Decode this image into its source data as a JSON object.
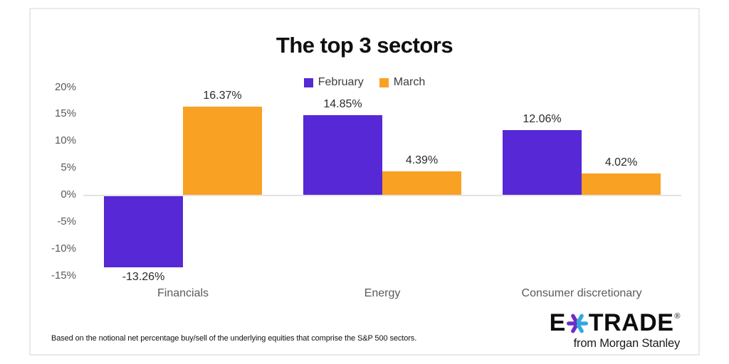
{
  "card": {
    "background": "#ffffff",
    "border_color": "#e9e9e9"
  },
  "header": {
    "title": "The top 3 sectors"
  },
  "chart_data": {
    "type": "bar",
    "title": "The top 3 sectors",
    "categories": [
      "Financials",
      "Energy",
      "Consumer discretionary"
    ],
    "series": [
      {
        "name": "February",
        "color": "#5628d6",
        "values": [
          -13.26,
          14.85,
          12.06
        ],
        "labels": [
          "-13.26%",
          "14.85%",
          "12.06%"
        ]
      },
      {
        "name": "March",
        "color": "#f9a123",
        "values": [
          16.37,
          4.39,
          4.02
        ],
        "labels": [
          "16.37%",
          "4.39%",
          "4.02%"
        ]
      }
    ],
    "yticks": [
      20,
      15,
      10,
      5,
      0,
      -5,
      -10,
      -15
    ],
    "ytick_labels": [
      "20%",
      "15%",
      "10%",
      "5%",
      "0%",
      "-5%",
      "-10%",
      "-15%"
    ],
    "ylim": [
      -15,
      20
    ],
    "xlabel": "",
    "ylabel": "",
    "grid": false,
    "zero_line": true,
    "legend_position": "top-center"
  },
  "footnote": {
    "text": "Based on the notional net percentage buy/sell of the underlying equities that comprise the S&P 500 sectors."
  },
  "logo": {
    "part_e": "E",
    "part_trade": "TRADE",
    "registered": "®",
    "tagline": "from Morgan Stanley",
    "star_purple": "#6a2fc4",
    "star_blue": "#33a7df"
  }
}
